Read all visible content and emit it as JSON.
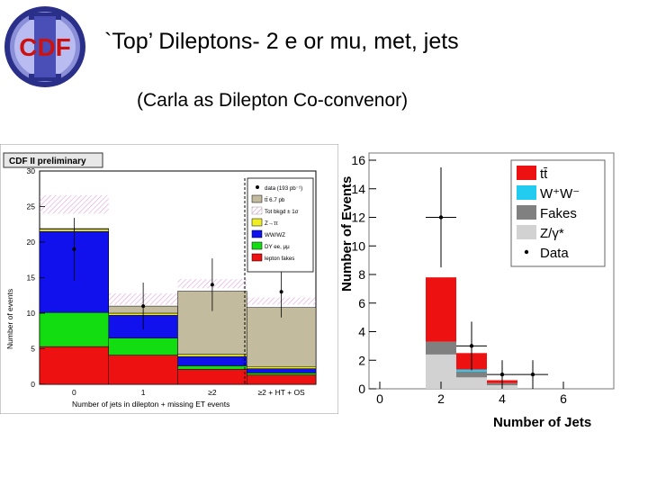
{
  "header": {
    "logo_text": "CDF",
    "title": "`Top’ Dileptons- 2 e or mu, met, jets",
    "subtitle": "(Carla as Dilepton Co-convenor)"
  },
  "chart_data": [
    {
      "type": "bar",
      "stacked": true,
      "badge": "CDF II preliminary",
      "categories": [
        "0",
        "1",
        "≥2",
        "≥2 + HT + OS"
      ],
      "ylabel": "Number of events",
      "xlabel": "Number of jets in dilepton + missing ET events",
      "ylim": [
        0,
        30
      ],
      "yticks": [
        0,
        5,
        10,
        15,
        20,
        25,
        30
      ],
      "series": [
        {
          "name": "lepton fakes",
          "color": "#ee1111",
          "values": [
            5.3,
            4.1,
            2.1,
            1.3
          ]
        },
        {
          "name": "DY ee, μμ",
          "color": "#11dd11",
          "values": [
            4.8,
            2.4,
            0.5,
            0.3
          ]
        },
        {
          "name": "WW/WZ",
          "color": "#1111ee",
          "values": [
            11.4,
            3.2,
            1.3,
            0.6
          ]
        },
        {
          "name": "Z→ττ",
          "color": "#eeee22",
          "values": [
            0.3,
            0.3,
            0.3,
            0.3
          ]
        },
        {
          "name": "tt̄ 6.7 pb",
          "color": "#c2bb9e",
          "values": [
            0.1,
            1.0,
            8.9,
            8.3
          ]
        }
      ],
      "tot_bkgd_band": {
        "name": "Tot bkgd ± 1σ",
        "lower": [
          24.0,
          11.2,
          13.5,
          11.2
        ],
        "upper": [
          26.6,
          12.8,
          14.8,
          12.2
        ]
      },
      "data": {
        "name": "data (193 pb⁻¹)",
        "values": [
          19,
          11,
          14,
          13
        ],
        "errors": [
          4.4,
          3.3,
          3.7,
          3.6
        ]
      },
      "legend_position": "top-right"
    },
    {
      "type": "bar",
      "stacked": true,
      "x": [
        0,
        1,
        2,
        3,
        4,
        5,
        6
      ],
      "xticks": [
        0,
        2,
        4,
        6
      ],
      "ylabel": "Number of Events",
      "xlabel": "Number of Jets",
      "ylim": [
        0,
        16
      ],
      "yticks": [
        0,
        2,
        4,
        6,
        8,
        10,
        12,
        14,
        16
      ],
      "series": [
        {
          "name": "Z/γ*",
          "color": "#d2d2d2",
          "values": [
            0,
            0,
            2.4,
            0.8,
            0.25,
            0,
            0
          ]
        },
        {
          "name": "Fakes",
          "color": "#808080",
          "values": [
            0,
            0,
            0.9,
            0.4,
            0.15,
            0,
            0
          ]
        },
        {
          "name": "W⁺W⁻",
          "color": "#22ccf0",
          "values": [
            0,
            0,
            0,
            0.15,
            0,
            0,
            0
          ]
        },
        {
          "name": "tt̄",
          "color": "#ee1111",
          "values": [
            0,
            0,
            4.5,
            1.15,
            0.2,
            0,
            0
          ]
        }
      ],
      "data": {
        "name": "Data",
        "values": [
          0,
          0,
          12,
          3,
          1,
          1,
          0
        ],
        "errors": [
          0,
          0,
          3.5,
          1.7,
          1.0,
          1.0,
          0
        ]
      },
      "legend_position": "top-right"
    }
  ]
}
